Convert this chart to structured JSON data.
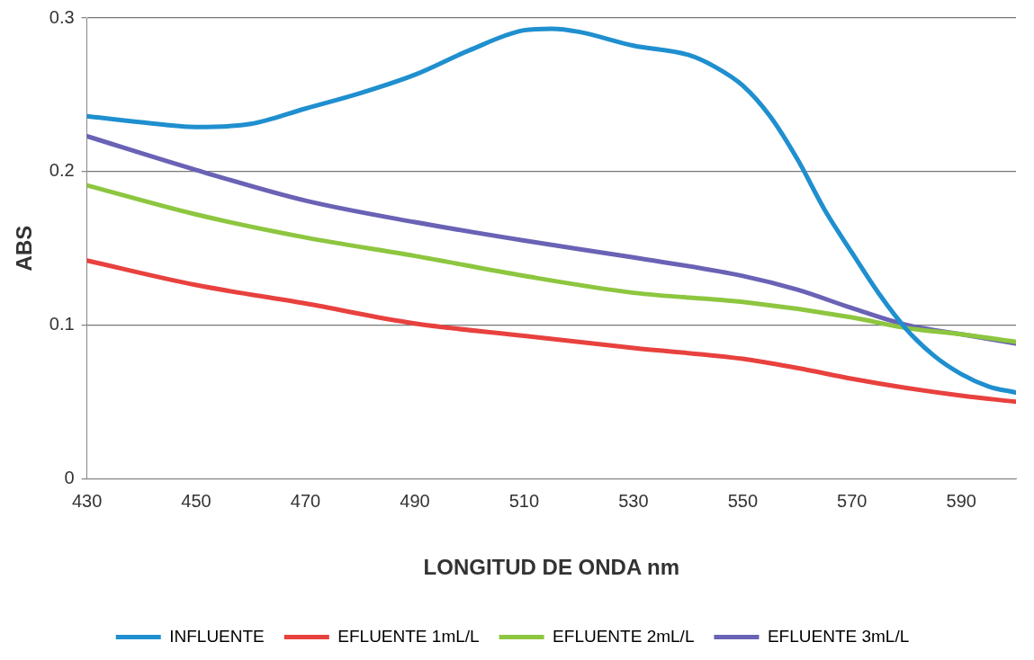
{
  "chart_data": {
    "type": "line",
    "xlabel": "LONGITUD DE ONDA nm",
    "ylabel": "ABS",
    "xlim": [
      430,
      600
    ],
    "xticks": [
      430,
      450,
      470,
      490,
      510,
      530,
      550,
      570,
      590
    ],
    "ylim": [
      0,
      0.3
    ],
    "yticks": [
      0,
      0.1,
      0.2,
      0.3
    ],
    "grid": "y",
    "legend": "bottom",
    "marker": "none",
    "line_style": "solid",
    "series": [
      {
        "name": "INFLUENTE",
        "color": "#1f8fcf",
        "x": [
          430,
          440,
          450,
          460,
          470,
          480,
          490,
          500,
          510,
          515,
          520,
          530,
          540,
          545,
          550,
          555,
          560,
          565,
          570,
          575,
          580,
          585,
          590,
          595,
          600
        ],
        "values": [
          0.236,
          0.232,
          0.229,
          0.231,
          0.241,
          0.251,
          0.263,
          0.279,
          0.292,
          0.293,
          0.291,
          0.282,
          0.276,
          0.268,
          0.256,
          0.236,
          0.208,
          0.175,
          0.147,
          0.12,
          0.097,
          0.08,
          0.068,
          0.06,
          0.056
        ]
      },
      {
        "name": "EFLUENTE 1mL/L",
        "color": "#e8413e",
        "x": [
          430,
          450,
          470,
          490,
          510,
          530,
          550,
          560,
          570,
          580,
          590,
          600
        ],
        "values": [
          0.142,
          0.126,
          0.114,
          0.101,
          0.093,
          0.085,
          0.078,
          0.072,
          0.065,
          0.059,
          0.054,
          0.05
        ]
      },
      {
        "name": "EFLUENTE 2mL/L",
        "color": "#8dc63f",
        "x": [
          430,
          450,
          470,
          490,
          510,
          530,
          550,
          570,
          580,
          590,
          600
        ],
        "values": [
          0.191,
          0.172,
          0.157,
          0.145,
          0.132,
          0.121,
          0.115,
          0.105,
          0.098,
          0.094,
          0.089
        ]
      },
      {
        "name": "EFLUENTE 3mL/L",
        "color": "#6a62b5",
        "x": [
          430,
          450,
          470,
          490,
          510,
          530,
          550,
          560,
          570,
          580,
          590,
          600
        ],
        "values": [
          0.223,
          0.201,
          0.181,
          0.167,
          0.155,
          0.144,
          0.132,
          0.123,
          0.111,
          0.1,
          0.094,
          0.088
        ]
      }
    ]
  }
}
